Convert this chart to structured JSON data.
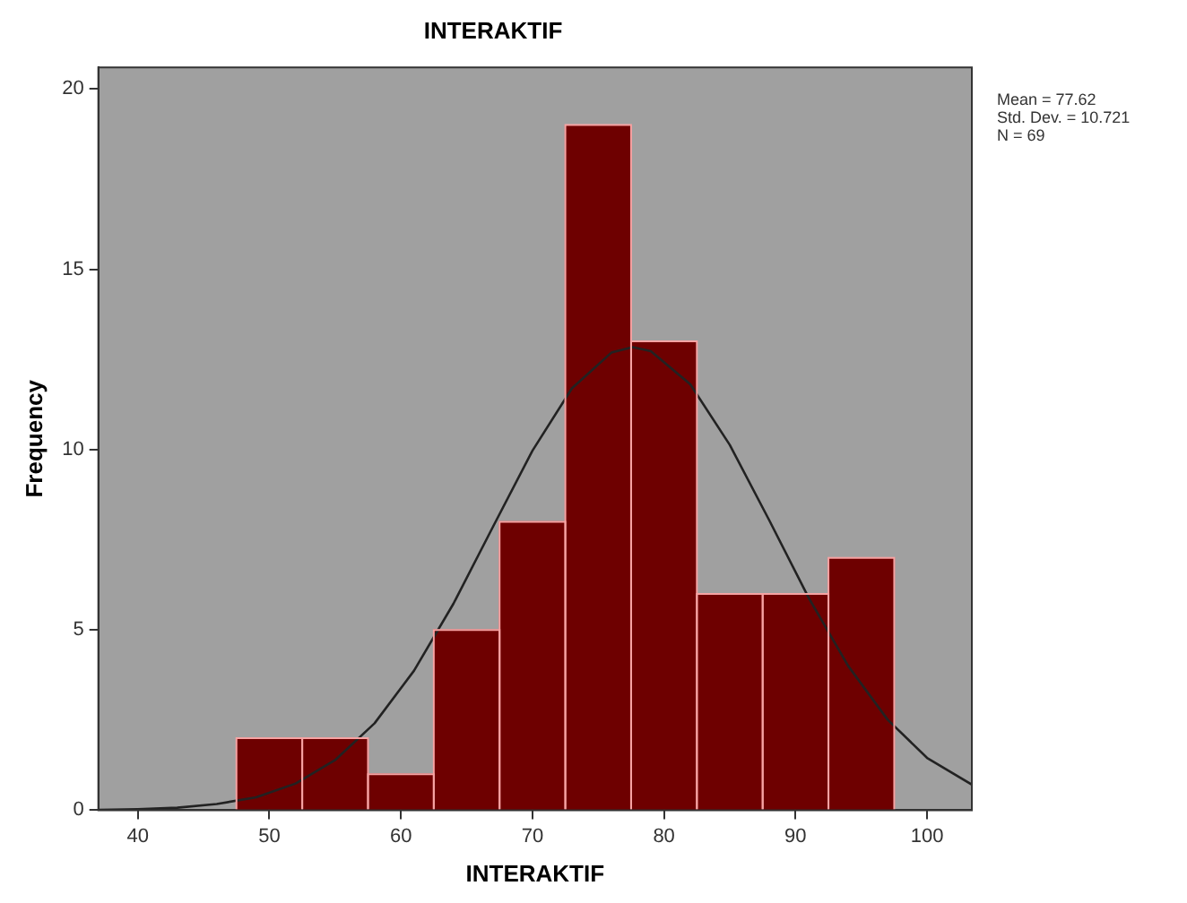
{
  "chart_data": {
    "type": "histogram",
    "title": "INTERAKTIF",
    "xlabel": "INTERAKTIF",
    "ylabel": "Frequency",
    "bins": [
      47.5,
      52.5,
      57.5,
      62.5,
      67.5,
      72.5,
      77.5,
      82.5,
      87.5,
      92.5,
      97.5
    ],
    "values": [
      2,
      2,
      1,
      5,
      8,
      19,
      13,
      6,
      6,
      7
    ],
    "color": "#6e0000",
    "series": [
      {
        "type": "line",
        "color": "#222222",
        "x": [
          37,
          40,
          43,
          46,
          49,
          52,
          55,
          58,
          61,
          64,
          67,
          70,
          73,
          76,
          77.62,
          79,
          82,
          85,
          88,
          91,
          94,
          97,
          100,
          103.4
        ],
        "values": [
          0.01,
          0.03,
          0.07,
          0.17,
          0.36,
          0.74,
          1.39,
          2.41,
          3.87,
          5.73,
          7.86,
          9.97,
          11.7,
          12.69,
          12.84,
          12.73,
          11.81,
          10.13,
          8.04,
          5.89,
          4.0,
          2.51,
          1.45,
          0.71
        ]
      }
    ],
    "xlim": [
      37,
      103.4
    ],
    "xticks": [
      40,
      50,
      60,
      70,
      80,
      90,
      100
    ],
    "ylim": [
      0,
      20.6
    ],
    "yticks": [
      0,
      5,
      10,
      15,
      20
    ],
    "grid": false,
    "legend": false,
    "marker": "none",
    "line_style": "solid",
    "annotations": [
      "Mean = 77.62",
      "Std. Dev. = 10.721",
      "N = 69"
    ]
  }
}
